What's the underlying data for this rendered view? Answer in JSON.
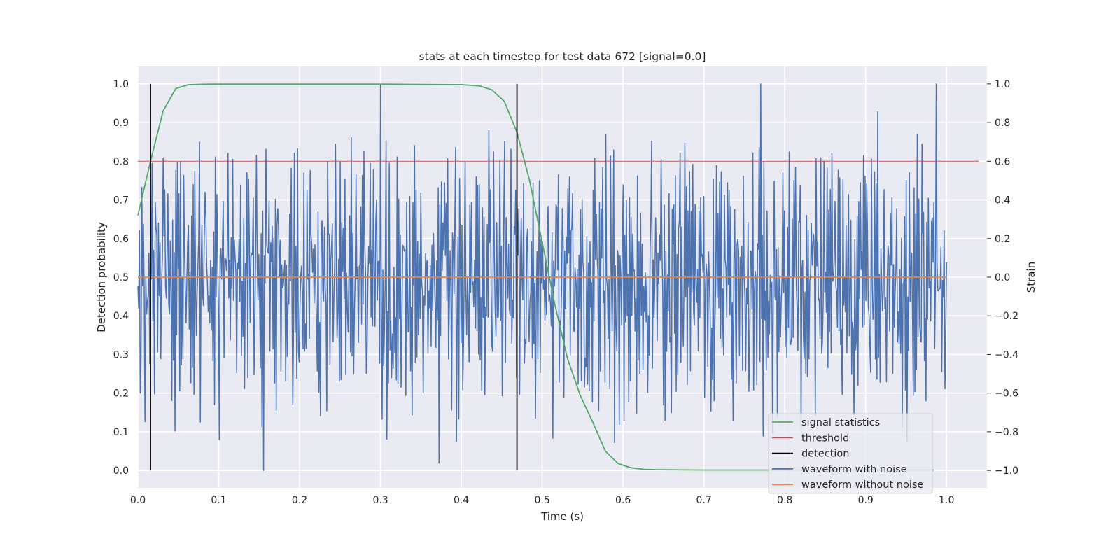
{
  "chart_data": {
    "type": "line",
    "title": "stats at each timestep for test data 672 [signal=0.0]",
    "xlabel": "Time (s)",
    "ylabel_left": "Detection probability",
    "ylabel_right": "Strain",
    "xlim": [
      0.0,
      1.05
    ],
    "ylim_left": [
      -0.045,
      1.045
    ],
    "ylim_right": [
      -1.09,
      1.09
    ],
    "x_ticks": [
      "0.0",
      "0.1",
      "0.2",
      "0.3",
      "0.4",
      "0.5",
      "0.6",
      "0.7",
      "0.8",
      "0.9",
      "1.0"
    ],
    "y_ticks_left": [
      "0.0",
      "0.1",
      "0.2",
      "0.3",
      "0.4",
      "0.5",
      "0.6",
      "0.7",
      "0.8",
      "0.9",
      "1.0"
    ],
    "y_ticks_right": [
      "−1.0",
      "−0.8",
      "−0.6",
      "−0.4",
      "−0.2",
      "0.0",
      "0.2",
      "0.4",
      "0.6",
      "0.8",
      "1.0"
    ],
    "grid": true,
    "legend_position": "lower right",
    "colors": {
      "signal_statistics": "#55a868",
      "threshold": "#c44e52",
      "detection": "#000000",
      "waveform_with_noise": "#4c72b0",
      "waveform_without_noise": "#dd8452",
      "plot_background": "#eaeaf2",
      "grid": "#ffffff"
    },
    "series": [
      {
        "name": "signal statistics",
        "axis": "left",
        "x": [
          0.0,
          0.0156,
          0.0312,
          0.0469,
          0.0625,
          0.0781,
          0.0938,
          0.2,
          0.3,
          0.4,
          0.4219,
          0.4375,
          0.4531,
          0.4688,
          0.4844,
          0.5,
          0.5156,
          0.5312,
          0.5469,
          0.5625,
          0.5781,
          0.5938,
          0.6094,
          0.625,
          0.6406,
          0.7,
          0.8,
          0.9,
          0.9844
        ],
        "y": [
          0.66,
          0.8,
          0.93,
          0.988,
          0.998,
          0.999,
          0.9995,
          0.9995,
          0.9995,
          0.998,
          0.995,
          0.985,
          0.955,
          0.875,
          0.75,
          0.59,
          0.43,
          0.29,
          0.195,
          0.125,
          0.05,
          0.018,
          0.007,
          0.003,
          0.002,
          0.001,
          0.001,
          0.001,
          0.001
        ]
      },
      {
        "name": "threshold",
        "axis": "left",
        "x": [
          0.0,
          1.04
        ],
        "y": [
          0.8,
          0.8
        ]
      },
      {
        "name": "detection",
        "axis": "left",
        "segments": [
          {
            "x": 0.0156,
            "y0": 0.0,
            "y1": 1.0
          },
          {
            "x": 0.4688,
            "y0": 0.0,
            "y1": 1.0
          }
        ]
      },
      {
        "name": "waveform with noise",
        "axis": "right",
        "x_range": [
          0.0,
          1.0
        ],
        "num_points": 1024,
        "values_note": "",
        "y": [
          0.2,
          -0.25,
          0.45,
          -0.85,
          -0.1,
          0.3,
          -0.55,
          0.35,
          0.1,
          -0.6,
          0.4,
          -0.3,
          0.15,
          -0.2,
          0.55,
          -0.65,
          0.25,
          -0.45,
          0.6,
          -0.05,
          0.33,
          -0.4,
          0.18,
          -0.28,
          0.42,
          -0.72,
          0.08,
          -0.15,
          0.5,
          -0.35,
          0.27,
          -0.5,
          0.62,
          -0.22,
          0.12,
          -0.38,
          0.47,
          -0.12,
          0.22,
          -0.58,
          0.38,
          -0.18,
          0.05,
          -0.42,
          0.56,
          -0.26,
          0.31,
          -0.62,
          0.14,
          -0.08,
          0.48,
          -0.33,
          0.2,
          -0.5,
          0.41,
          -0.16,
          0.29,
          -0.7,
          0.55,
          -0.24,
          0.1,
          -0.47,
          0.36,
          -0.1,
          0.52,
          -0.39,
          0.16,
          -0.55,
          0.44,
          -0.2,
          0.26,
          -0.63,
          0.58,
          -0.3,
          0.07,
          -0.44,
          0.39,
          -0.14,
          0.61,
          -0.52,
          0.19,
          -0.27,
          0.46,
          -0.6,
          0.23,
          -0.09,
          0.53,
          -0.36,
          0.3,
          -0.48,
          0.11,
          -0.66,
          0.64,
          -0.21,
          0.35,
          -0.4,
          0.17,
          -0.53,
          0.5,
          -0.13
        ]
      },
      {
        "name": "waveform without noise",
        "axis": "right",
        "x": [
          0.0,
          1.0
        ],
        "y": [
          0.0,
          0.0
        ]
      }
    ],
    "legend": [
      "signal statistics",
      "threshold",
      "detection",
      "waveform with noise",
      "waveform without noise"
    ]
  }
}
